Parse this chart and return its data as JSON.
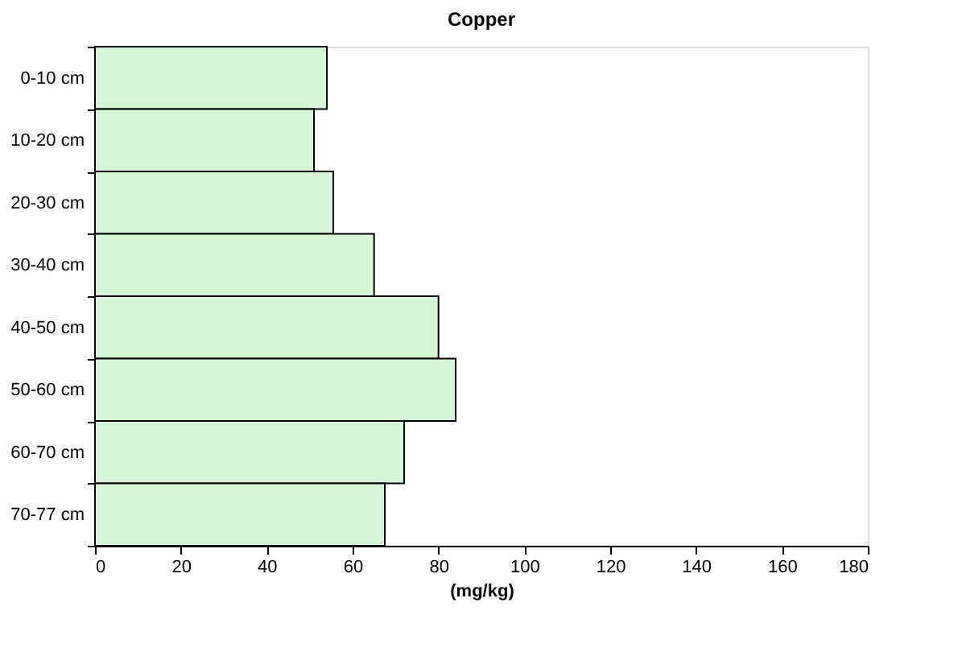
{
  "chart_data": {
    "type": "bar",
    "orientation": "horizontal",
    "title": "Copper",
    "xlabel": "(mg/kg)",
    "categories": [
      "0-10 cm",
      "10-20 cm",
      "20-30 cm",
      "30-40 cm",
      "40-50 cm",
      "50-60 cm",
      "60-70 cm",
      "70-77 cm"
    ],
    "values": [
      54,
      51,
      55.5,
      65,
      80,
      84,
      72,
      67.5
    ],
    "color": "#d6f5d6",
    "xlim": [
      0,
      180
    ],
    "xticks": [
      0,
      20,
      40,
      60,
      80,
      100,
      120,
      140,
      160,
      180
    ],
    "grid": false
  }
}
